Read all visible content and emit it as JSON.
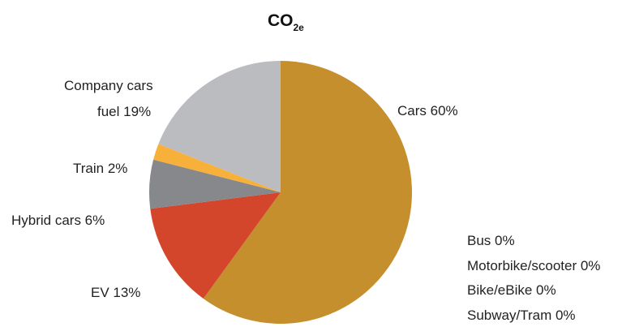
{
  "chart_data": {
    "type": "pie",
    "title": "CO",
    "title_subscript": "2e",
    "slices": [
      {
        "label": "Cars 60%",
        "value": 60,
        "color": "#c68f2d"
      },
      {
        "label": "EV 13%",
        "value": 13,
        "color": "#d3462b"
      },
      {
        "label": "Hybrid cars 6%",
        "value": 6,
        "color": "#87888b"
      },
      {
        "label": "Train 2%",
        "value": 2,
        "color": "#f7b03a"
      },
      {
        "label_lines": [
          "Company cars",
          "fuel 19%"
        ],
        "value": 19,
        "color": "#bbbcc0"
      }
    ],
    "zero_categories": [
      "Bus 0%",
      "Motorbike/scooter 0%",
      "Bike/eBike 0%",
      "Subway/Tram 0%"
    ]
  }
}
